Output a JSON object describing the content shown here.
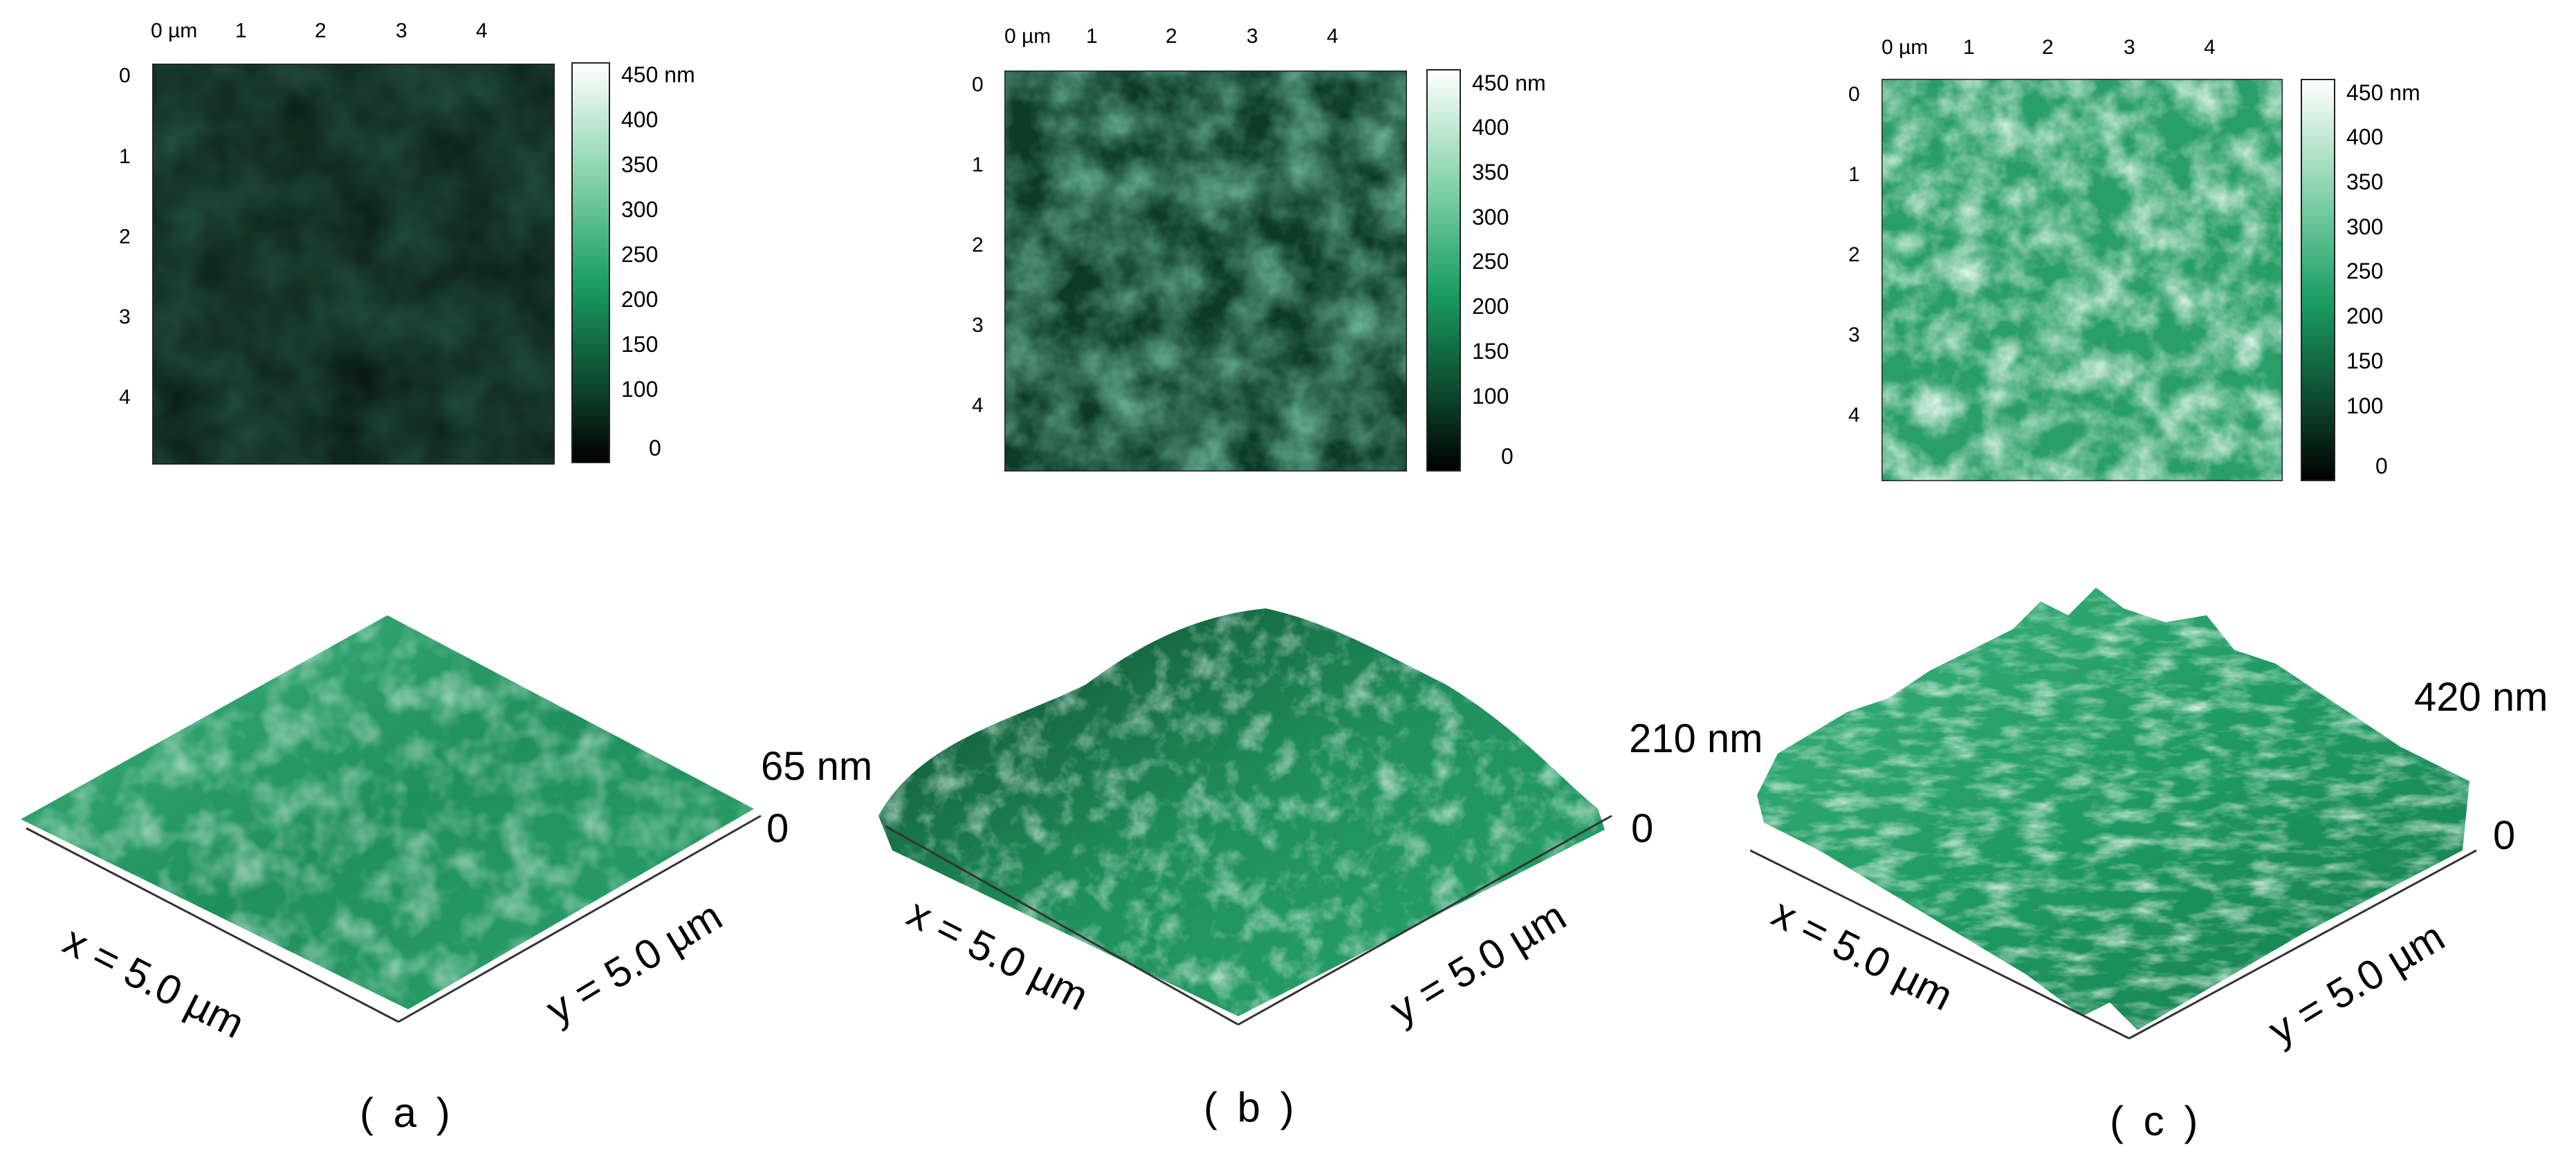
{
  "colors": {
    "low": "#000000",
    "mid": "#1a9e63",
    "high": "#ffffff",
    "surface_base": "#1f8f5c"
  },
  "colorbar_ticks": [
    "450 nm",
    "400",
    "350",
    "300",
    "250",
    "200",
    "150",
    "100",
    "0"
  ],
  "x_ticks": [
    "0 µm",
    "1",
    "2",
    "3",
    "4"
  ],
  "y_ticks": [
    "0",
    "1",
    "2",
    "3",
    "4"
  ],
  "panels": [
    {
      "caption": "( a )",
      "height_label": "65 nm",
      "zero_label": "0",
      "x_axis_label": "x = 5.0 µm",
      "y_axis_label": "y = 5.0 µm",
      "brightness": 0.18
    },
    {
      "caption": "( b )",
      "height_label": "210 nm",
      "zero_label": "0",
      "x_axis_label": "x = 5.0 µm",
      "y_axis_label": "y = 5.0 µm",
      "brightness": 0.42
    },
    {
      "caption": "( c )",
      "height_label": "420 nm",
      "zero_label": "0",
      "x_axis_label": "x = 5.0 µm",
      "y_axis_label": "y = 5.0 µm",
      "brightness": 0.68
    }
  ]
}
